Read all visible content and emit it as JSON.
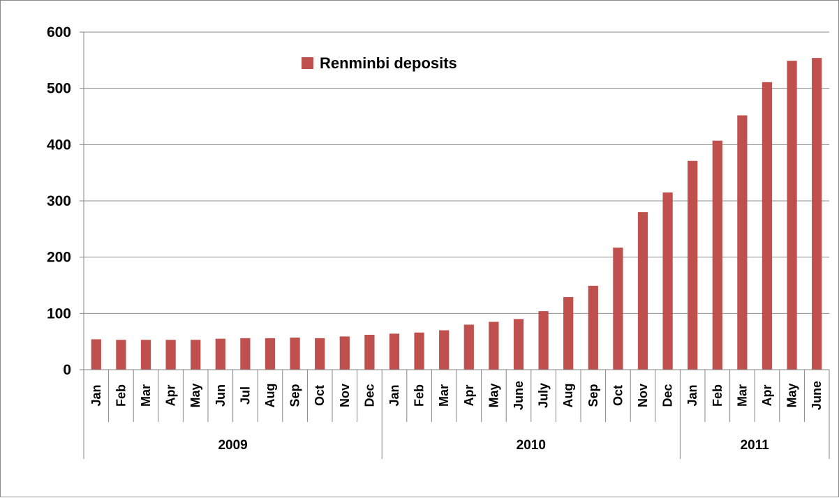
{
  "colors": {
    "bar": "#c0504d",
    "grid": "#8c8c8c",
    "axis": "#868686"
  },
  "chart_data": {
    "type": "bar",
    "title": "",
    "xlabel": "",
    "ylabel": "",
    "ylim": [
      0,
      600
    ],
    "yticks": [
      0,
      100,
      200,
      300,
      400,
      500,
      600
    ],
    "grid": true,
    "legend_position": "top-center",
    "categories": [
      "Jan",
      "Feb",
      "Mar",
      "Apr",
      "May",
      "Jun",
      "Jul",
      "Aug",
      "Sep",
      "Oct",
      "Nov",
      "Dec",
      "Jan",
      "Feb",
      "Mar",
      "Apr",
      "May",
      "June",
      "July",
      "Aug",
      "Sep",
      "Oct",
      "Nov",
      "Dec",
      "Jan",
      "Feb",
      "Mar",
      "Apr",
      "May",
      "June"
    ],
    "groups": [
      {
        "label": "2009",
        "count": 12
      },
      {
        "label": "2010",
        "count": 12
      },
      {
        "label": "2011",
        "count": 6
      }
    ],
    "series": [
      {
        "name": "Renminbi deposits",
        "values": [
          54,
          53,
          53,
          53,
          53,
          55,
          56,
          56,
          57,
          56,
          59,
          62,
          64,
          66,
          70,
          80,
          85,
          90,
          104,
          129,
          149,
          217,
          280,
          315,
          371,
          407,
          452,
          511,
          549,
          554
        ]
      }
    ]
  }
}
